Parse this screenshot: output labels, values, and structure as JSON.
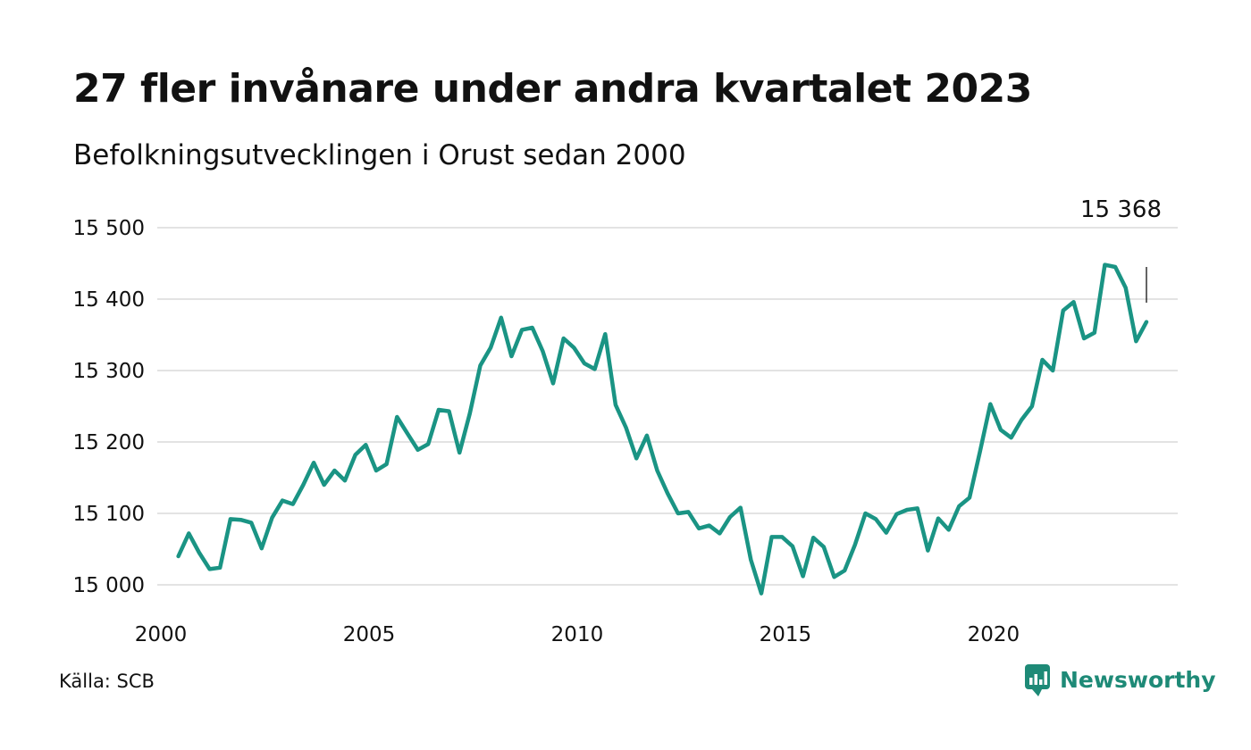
{
  "header": {
    "title": "27 fler invånare under andra kvartalet 2023",
    "subtitle": "Befolkningsutvecklingen i Orust sedan 2000"
  },
  "footer": {
    "source": "Källa: SCB",
    "brand_name": "Newsworthy",
    "brand_icon": "newsworthy-logo-icon",
    "brand_color": "#1e8a77"
  },
  "colors": {
    "line": "#1a9484",
    "grid": "#e3e3e3",
    "text": "#111111"
  },
  "chart_data": {
    "type": "line",
    "title": "27 fler invånare under andra kvartalet 2023",
    "subtitle": "Befolkningsutvecklingen i Orust sedan 2000",
    "xlabel": "",
    "ylabel": "",
    "xlim": [
      2000,
      2023.5
    ],
    "ylim": [
      15000,
      15500
    ],
    "x_ticks": [
      2000,
      2005,
      2010,
      2015,
      2020
    ],
    "x_tick_labels": [
      "2000",
      "2005",
      "2010",
      "2015",
      "2020"
    ],
    "y_ticks": [
      15000,
      15100,
      15200,
      15300,
      15400,
      15500
    ],
    "y_tick_labels": [
      "15 000",
      "15 100",
      "15 200",
      "15 300",
      "15 400",
      "15 500"
    ],
    "grid": true,
    "last_value_label": "15 368",
    "series": [
      {
        "x": [
          2000.25,
          2000.5,
          2000.75,
          2001.0,
          2001.25,
          2001.5,
          2001.75,
          2002.0,
          2002.25,
          2002.5,
          2002.75,
          2003.0,
          2003.25,
          2003.5,
          2003.75,
          2004.0,
          2004.25,
          2004.5,
          2004.75,
          2005.0,
          2005.25,
          2005.5,
          2005.75,
          2006.0,
          2006.25,
          2006.5,
          2006.75,
          2007.0,
          2007.25,
          2007.5,
          2007.75,
          2008.0,
          2008.25,
          2008.5,
          2008.75,
          2009.0,
          2009.25,
          2009.5,
          2009.75,
          2010.0,
          2010.25,
          2010.5,
          2010.75,
          2011.0,
          2011.25,
          2011.5,
          2011.75,
          2012.0,
          2012.25,
          2012.5,
          2012.75,
          2013.0,
          2013.25,
          2013.5,
          2013.75,
          2014.0,
          2014.25,
          2014.5,
          2014.75,
          2015.0,
          2015.25,
          2015.5,
          2015.75,
          2016.0,
          2016.25,
          2016.5,
          2016.75,
          2017.0,
          2017.25,
          2017.5,
          2017.75,
          2018.0,
          2018.25,
          2018.5,
          2018.75,
          2019.0,
          2019.25,
          2019.5,
          2019.75,
          2020.0,
          2020.25,
          2020.5,
          2020.75,
          2021.0,
          2021.25,
          2021.5,
          2021.75,
          2022.0,
          2022.25,
          2022.5,
          2022.75,
          2023.0,
          2023.25,
          2023.5
        ],
        "values": [
          15040,
          15072,
          15045,
          15022,
          15024,
          15092,
          15091,
          15087,
          15051,
          15094,
          15118,
          15113,
          15140,
          15171,
          15140,
          15160,
          15146,
          15182,
          15196,
          15160,
          15169,
          15235,
          15212,
          15189,
          15197,
          15245,
          15243,
          15185,
          15240,
          15307,
          15332,
          15374,
          15320,
          15357,
          15360,
          15327,
          15282,
          15345,
          15332,
          15310,
          15302,
          15351,
          15252,
          15220,
          15177,
          15209,
          15160,
          15128,
          15100,
          15102,
          15079,
          15083,
          15072,
          15095,
          15108,
          15035,
          14988,
          15067,
          15067,
          15054,
          15012,
          15066,
          15053,
          15011,
          15020,
          15056,
          15100,
          15092,
          15073,
          15099,
          15105,
          15107,
          15048,
          15093,
          15077,
          15110,
          15122,
          15186,
          15253,
          15217,
          15206,
          15231,
          15250,
          15315,
          15300,
          15384,
          15396,
          15345,
          15353,
          15448,
          15445,
          15416,
          15341,
          15368
        ]
      }
    ]
  }
}
